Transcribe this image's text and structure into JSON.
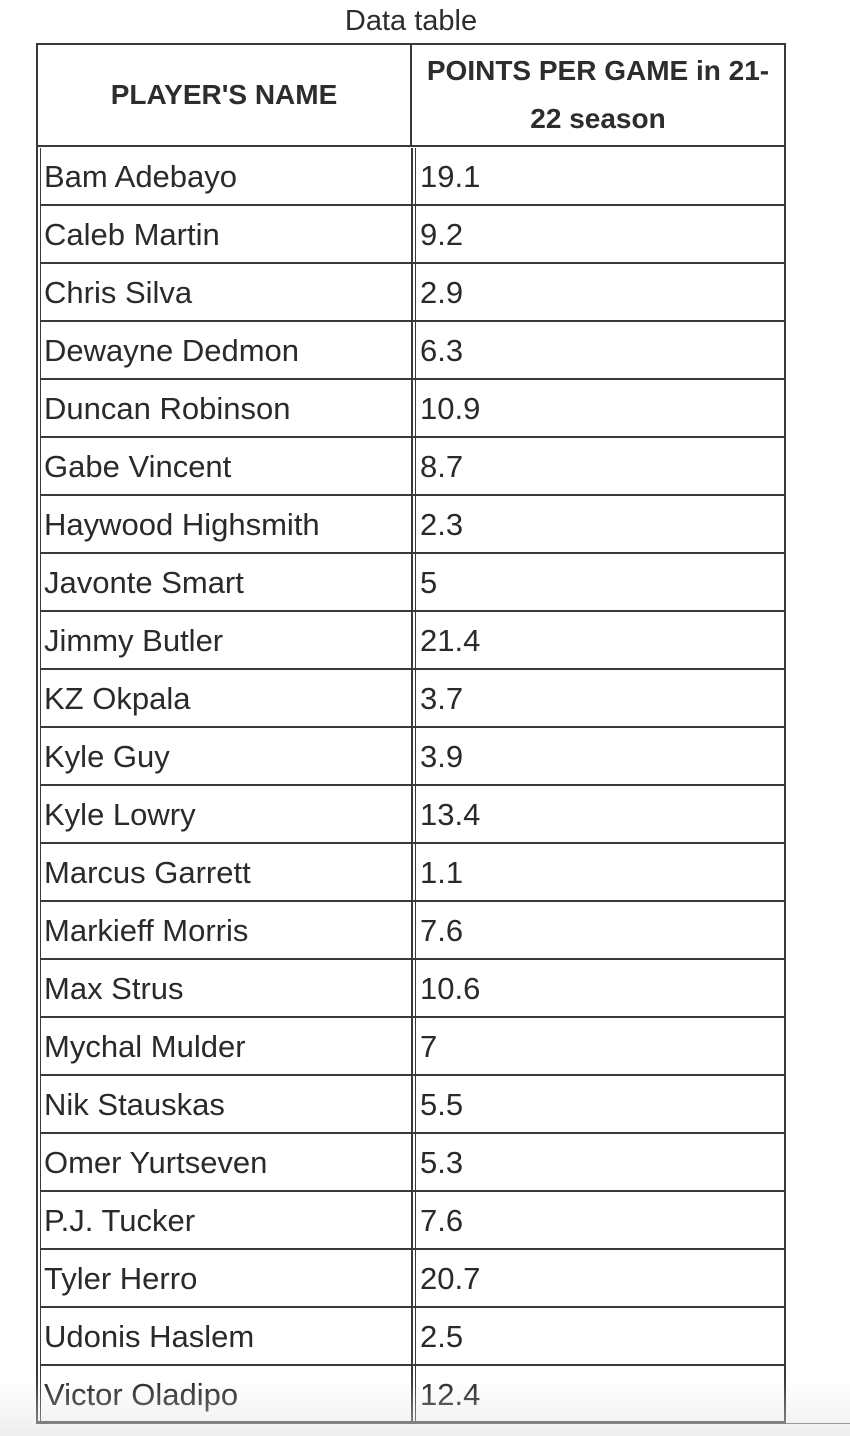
{
  "caption": "Data table",
  "table": {
    "headers": {
      "name": "PLAYER'S NAME",
      "points": "POINTS PER GAME in 21-22 season"
    },
    "rows": [
      {
        "name": "Bam Adebayo",
        "points": "19.1"
      },
      {
        "name": "Caleb Martin",
        "points": "9.2"
      },
      {
        "name": "Chris Silva",
        "points": "2.9"
      },
      {
        "name": "Dewayne Dedmon",
        "points": "6.3"
      },
      {
        "name": "Duncan Robinson",
        "points": "10.9"
      },
      {
        "name": "Gabe Vincent",
        "points": "8.7"
      },
      {
        "name": "Haywood Highsmith",
        "points": "2.3"
      },
      {
        "name": "Javonte Smart",
        "points": "5"
      },
      {
        "name": "Jimmy Butler",
        "points": "21.4"
      },
      {
        "name": "KZ Okpala",
        "points": "3.7"
      },
      {
        "name": "Kyle Guy",
        "points": "3.9"
      },
      {
        "name": "Kyle Lowry",
        "points": "13.4"
      },
      {
        "name": "Marcus Garrett",
        "points": "1.1"
      },
      {
        "name": "Markieff Morris",
        "points": "7.6"
      },
      {
        "name": "Max Strus",
        "points": "10.6"
      },
      {
        "name": "Mychal Mulder",
        "points": "7"
      },
      {
        "name": "Nik Stauskas",
        "points": "5.5"
      },
      {
        "name": "Omer Yurtseven",
        "points": "5.3"
      },
      {
        "name": "P.J. Tucker",
        "points": "7.6"
      },
      {
        "name": "Tyler Herro",
        "points": "20.7"
      },
      {
        "name": "Udonis Haslem",
        "points": "2.5"
      },
      {
        "name": "Victor Oladipo",
        "points": "12.4"
      }
    ]
  }
}
